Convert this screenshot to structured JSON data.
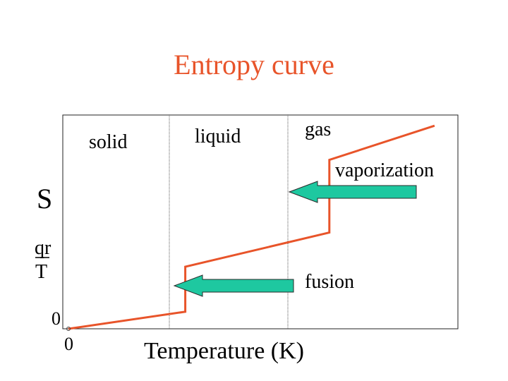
{
  "chart_data": {
    "type": "line",
    "title": "Entropy curve",
    "xlabel": "Temperature (K)",
    "ylabel": "S",
    "ylabel_fraction": {
      "numerator": "qr",
      "denominator": "T"
    },
    "x_origin_label": "0",
    "y_origin_label": "0",
    "regions": [
      "solid",
      "liquid",
      "gas"
    ],
    "transitions": [
      {
        "name": "fusion",
        "arrow_color": "#1ec8a0"
      },
      {
        "name": "vaporization",
        "arrow_color": "#1ec8a0"
      }
    ],
    "series": [
      {
        "color": "#e8542a",
        "points": [
          [
            0,
            0
          ],
          [
            0.3,
            0.08
          ],
          [
            0.3,
            0.29
          ],
          [
            0.67,
            0.45
          ],
          [
            0.67,
            0.79
          ],
          [
            0.94,
            0.95
          ]
        ]
      }
    ],
    "title_color": "#e8542a",
    "curve_color": "#e8542a",
    "arrow_color": "#1ec8a0"
  }
}
